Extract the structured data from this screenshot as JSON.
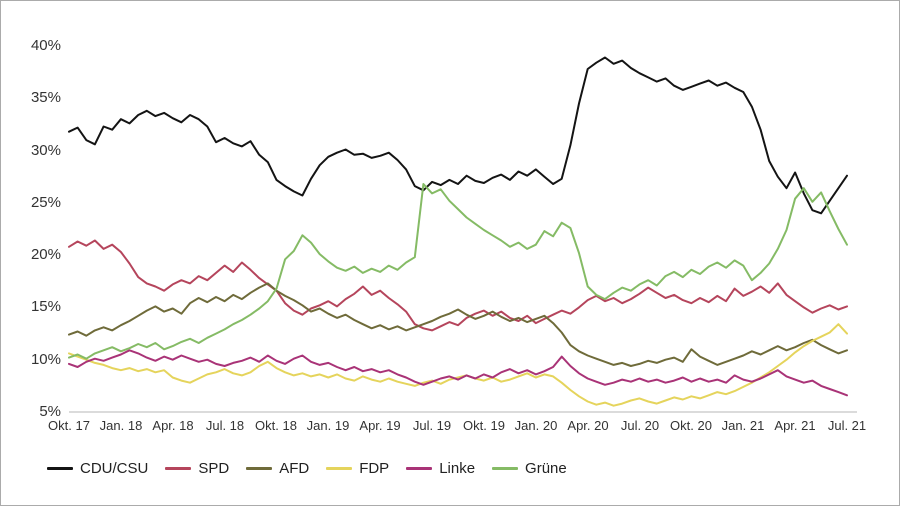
{
  "chart_data": {
    "type": "line",
    "title": "",
    "xlabel": "",
    "ylabel": "",
    "ylim": [
      5,
      40
    ],
    "grid": "none (single light baseline at 5%)",
    "legend_position": "bottom-left",
    "x_tick_labels": [
      "Okt. 17",
      "Jan. 18",
      "Apr. 18",
      "Jul. 18",
      "Okt. 18",
      "Jan. 19",
      "Apr. 19",
      "Jul. 19",
      "Okt. 19",
      "Jan. 20",
      "Apr. 20",
      "Jul. 20",
      "Okt. 20",
      "Jan. 21",
      "Apr. 21",
      "Jul. 21"
    ],
    "y_tick_labels": [
      "40%",
      "35%",
      "30%",
      "25%",
      "20%",
      "15%",
      "10%",
      "5%"
    ],
    "x_resolution": "semi-monthly points from Okt. 2017 to Jul. 2021 (91 points per series)",
    "axis_color": "#cfcfcf",
    "text_color": "#333333",
    "series": [
      {
        "name": "CDU/CSU",
        "color": "#141414",
        "values": [
          31.8,
          32.2,
          31.0,
          30.6,
          32.3,
          32.0,
          33.0,
          32.6,
          33.4,
          33.8,
          33.3,
          33.6,
          33.1,
          32.7,
          33.4,
          33.0,
          32.3,
          30.8,
          31.2,
          30.7,
          30.4,
          30.9,
          29.6,
          28.9,
          27.2,
          26.6,
          26.1,
          25.7,
          27.3,
          28.6,
          29.4,
          29.8,
          30.1,
          29.6,
          29.7,
          29.3,
          29.5,
          29.8,
          29.1,
          28.2,
          26.6,
          26.2,
          27.0,
          26.7,
          27.2,
          26.8,
          27.6,
          27.1,
          26.9,
          27.4,
          27.7,
          27.2,
          28.0,
          27.6,
          28.2,
          27.5,
          26.8,
          27.3,
          30.5,
          34.5,
          37.8,
          38.4,
          38.9,
          38.3,
          38.6,
          37.9,
          37.4,
          37.0,
          36.6,
          36.9,
          36.2,
          35.8,
          36.1,
          36.4,
          36.7,
          36.2,
          36.5,
          36.0,
          35.6,
          34.2,
          32.0,
          29.0,
          27.5,
          26.4,
          27.9,
          25.9,
          24.3,
          24.0,
          25.2,
          26.4,
          27.6
        ]
      },
      {
        "name": "SPD",
        "color": "#b5455c",
        "values": [
          20.8,
          21.3,
          20.9,
          21.4,
          20.6,
          21.0,
          20.3,
          19.2,
          17.9,
          17.3,
          17.0,
          16.6,
          17.2,
          17.6,
          17.3,
          18.0,
          17.6,
          18.3,
          19.0,
          18.4,
          19.3,
          18.6,
          17.8,
          17.2,
          16.6,
          15.4,
          14.7,
          14.3,
          14.9,
          15.2,
          15.6,
          15.1,
          15.8,
          16.3,
          17.0,
          16.2,
          16.6,
          15.9,
          15.3,
          14.6,
          13.4,
          13.0,
          12.8,
          13.2,
          13.6,
          13.3,
          14.0,
          14.4,
          14.7,
          14.2,
          14.6,
          14.0,
          13.7,
          14.2,
          13.5,
          13.9,
          14.3,
          14.7,
          14.4,
          15.0,
          15.7,
          16.1,
          15.6,
          15.9,
          15.4,
          15.8,
          16.3,
          16.9,
          16.4,
          15.9,
          16.2,
          15.7,
          15.4,
          15.9,
          15.5,
          16.1,
          15.6,
          16.8,
          16.1,
          16.5,
          17.0,
          16.4,
          17.3,
          16.2,
          15.6,
          15.0,
          14.5,
          14.9,
          15.2,
          14.8,
          15.1
        ]
      },
      {
        "name": "AFD",
        "color": "#6f6b3a",
        "values": [
          12.4,
          12.7,
          12.3,
          12.8,
          13.1,
          12.8,
          13.3,
          13.7,
          14.2,
          14.7,
          15.1,
          14.6,
          14.9,
          14.4,
          15.4,
          15.9,
          15.5,
          16.0,
          15.6,
          16.2,
          15.8,
          16.4,
          16.9,
          17.3,
          16.6,
          16.1,
          15.7,
          15.2,
          14.6,
          14.9,
          14.4,
          14.0,
          14.3,
          13.8,
          13.4,
          13.0,
          13.3,
          12.9,
          13.2,
          12.8,
          13.1,
          13.4,
          13.7,
          14.1,
          14.4,
          14.8,
          14.3,
          13.9,
          14.2,
          14.6,
          14.1,
          13.7,
          14.0,
          13.6,
          13.9,
          14.2,
          13.5,
          12.6,
          11.4,
          10.8,
          10.4,
          10.1,
          9.8,
          9.5,
          9.7,
          9.4,
          9.6,
          9.9,
          9.7,
          10.0,
          10.2,
          9.8,
          11.0,
          10.3,
          9.9,
          9.5,
          9.8,
          10.1,
          10.4,
          10.8,
          10.5,
          10.9,
          11.3,
          10.9,
          11.2,
          11.6,
          11.9,
          11.4,
          11.0,
          10.6,
          10.9
        ]
      },
      {
        "name": "FDP",
        "color": "#e5d45c",
        "values": [
          10.6,
          10.3,
          10.0,
          9.7,
          9.5,
          9.2,
          9.0,
          9.2,
          8.9,
          9.1,
          8.8,
          9.0,
          8.3,
          8.0,
          7.8,
          8.2,
          8.6,
          8.8,
          9.1,
          8.7,
          8.5,
          8.8,
          9.4,
          9.8,
          9.2,
          8.8,
          8.5,
          8.7,
          8.4,
          8.6,
          8.3,
          8.6,
          8.2,
          8.0,
          8.4,
          8.1,
          7.9,
          8.2,
          7.9,
          7.7,
          7.5,
          7.8,
          8.0,
          7.7,
          8.1,
          8.3,
          8.5,
          8.2,
          8.0,
          8.3,
          7.9,
          8.1,
          8.4,
          8.7,
          8.3,
          8.6,
          8.4,
          7.8,
          7.1,
          6.5,
          6.0,
          5.7,
          5.9,
          5.6,
          5.8,
          6.1,
          6.3,
          6.0,
          5.8,
          6.1,
          6.4,
          6.2,
          6.5,
          6.3,
          6.6,
          6.9,
          6.7,
          7.0,
          7.4,
          7.8,
          8.3,
          8.8,
          9.4,
          10.0,
          10.7,
          11.3,
          11.8,
          12.2,
          12.6,
          13.4,
          12.5
        ]
      },
      {
        "name": "Linke",
        "color": "#a93377",
        "values": [
          9.6,
          9.3,
          9.8,
          10.1,
          9.9,
          10.2,
          10.5,
          10.9,
          10.6,
          10.2,
          9.9,
          10.3,
          10.0,
          10.4,
          10.1,
          9.8,
          10.0,
          9.6,
          9.4,
          9.7,
          9.9,
          10.2,
          9.8,
          10.4,
          9.9,
          9.6,
          10.1,
          10.4,
          9.8,
          9.5,
          9.7,
          9.3,
          9.0,
          9.3,
          8.9,
          9.1,
          8.8,
          9.0,
          8.6,
          8.3,
          7.9,
          7.6,
          7.9,
          8.2,
          8.4,
          8.1,
          8.5,
          8.2,
          8.6,
          8.3,
          8.8,
          9.1,
          8.7,
          9.0,
          8.6,
          8.9,
          9.3,
          10.3,
          9.4,
          8.7,
          8.2,
          7.9,
          7.6,
          7.8,
          8.1,
          7.9,
          8.2,
          7.9,
          8.1,
          7.8,
          8.0,
          8.3,
          7.9,
          8.2,
          7.9,
          8.1,
          7.8,
          8.5,
          8.1,
          7.9,
          8.2,
          8.6,
          9.0,
          8.4,
          8.1,
          7.8,
          8.0,
          7.5,
          7.2,
          6.9,
          6.6
        ]
      },
      {
        "name": "Grüne",
        "color": "#85bb65",
        "values": [
          10.2,
          10.5,
          10.1,
          10.6,
          10.9,
          11.2,
          10.8,
          11.1,
          11.5,
          11.2,
          11.6,
          11.0,
          11.3,
          11.7,
          12.0,
          11.6,
          12.1,
          12.5,
          12.9,
          13.4,
          13.8,
          14.3,
          14.9,
          15.6,
          16.8,
          19.6,
          20.4,
          21.9,
          21.2,
          20.1,
          19.4,
          18.8,
          18.5,
          18.9,
          18.3,
          18.7,
          18.4,
          19.0,
          18.6,
          19.3,
          19.8,
          26.8,
          25.9,
          26.3,
          25.2,
          24.4,
          23.6,
          23.0,
          22.4,
          21.9,
          21.4,
          20.8,
          21.2,
          20.6,
          21.0,
          22.3,
          21.8,
          23.1,
          22.6,
          20.2,
          17.0,
          16.2,
          15.8,
          16.4,
          16.9,
          16.6,
          17.2,
          17.6,
          17.1,
          18.0,
          18.4,
          17.9,
          18.6,
          18.2,
          18.9,
          19.3,
          18.8,
          19.5,
          19.0,
          17.6,
          18.3,
          19.2,
          20.6,
          22.4,
          25.4,
          26.4,
          25.1,
          26.0,
          24.2,
          22.5,
          21.0
        ]
      }
    ]
  }
}
